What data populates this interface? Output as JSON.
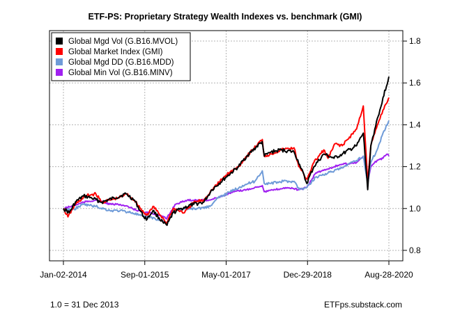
{
  "chart_data": {
    "type": "line",
    "title": "ETF-PS: Proprietary Strategy Wealth Indexes vs. benchmark (GMI)",
    "x_axis": {
      "ticks": [
        "Jan-02-2014",
        "Sep-01-2015",
        "May-01-2017",
        "Dec-29-2018",
        "Aug-28-2020"
      ],
      "range": [
        "2014-01-02",
        "2020-08-28"
      ]
    },
    "y_axis": {
      "ticks": [
        "0.8",
        "1.0",
        "1.2",
        "1.4",
        "1.6",
        "1.8"
      ],
      "range": [
        0.75,
        1.85
      ],
      "position": "right"
    },
    "grid": true,
    "legend_position": "top-left",
    "series": [
      {
        "name": "Global Mgd Vol (G.B16.MVOL)",
        "color": "#000000",
        "points": [
          [
            "2014-01-02",
            1.0
          ],
          [
            "2014-02-15",
            0.98
          ],
          [
            "2014-04-01",
            1.03
          ],
          [
            "2014-06-01",
            1.06
          ],
          [
            "2014-08-01",
            1.05
          ],
          [
            "2014-10-15",
            1.03
          ],
          [
            "2015-01-15",
            1.05
          ],
          [
            "2015-04-15",
            1.07
          ],
          [
            "2015-06-15",
            1.04
          ],
          [
            "2015-08-25",
            0.96
          ],
          [
            "2015-09-20",
            0.95
          ],
          [
            "2015-11-01",
            0.99
          ],
          [
            "2016-01-20",
            0.93
          ],
          [
            "2016-02-15",
            0.92
          ],
          [
            "2016-04-01",
            0.98
          ],
          [
            "2016-06-01",
            1.0
          ],
          [
            "2016-09-01",
            1.02
          ],
          [
            "2016-11-15",
            1.03
          ],
          [
            "2017-01-15",
            1.09
          ],
          [
            "2017-05-01",
            1.15
          ],
          [
            "2017-08-01",
            1.2
          ],
          [
            "2017-10-01",
            1.25
          ],
          [
            "2018-01-25",
            1.32
          ],
          [
            "2018-02-10",
            1.25
          ],
          [
            "2018-04-01",
            1.27
          ],
          [
            "2018-06-15",
            1.28
          ],
          [
            "2018-09-20",
            1.27
          ],
          [
            "2018-11-01",
            1.21
          ],
          [
            "2018-12-24",
            1.12
          ],
          [
            "2019-02-15",
            1.2
          ],
          [
            "2019-05-01",
            1.26
          ],
          [
            "2019-07-15",
            1.24
          ],
          [
            "2019-09-15",
            1.26
          ],
          [
            "2019-12-31",
            1.3
          ],
          [
            "2020-02-19",
            1.36
          ],
          [
            "2020-03-23",
            1.09
          ],
          [
            "2020-04-15",
            1.3
          ],
          [
            "2020-05-15",
            1.38
          ],
          [
            "2020-06-15",
            1.45
          ],
          [
            "2020-07-15",
            1.53
          ],
          [
            "2020-08-28",
            1.63
          ]
        ]
      },
      {
        "name": "Global Market Index (GMI)",
        "color": "#ff0000",
        "points": [
          [
            "2014-01-02",
            1.0
          ],
          [
            "2014-02-05",
            0.96
          ],
          [
            "2014-04-01",
            1.02
          ],
          [
            "2014-06-15",
            1.06
          ],
          [
            "2014-09-01",
            1.07
          ],
          [
            "2014-10-15",
            1.03
          ],
          [
            "2014-12-15",
            1.04
          ],
          [
            "2015-02-15",
            1.05
          ],
          [
            "2015-04-20",
            1.07
          ],
          [
            "2015-06-15",
            1.04
          ],
          [
            "2015-08-25",
            0.98
          ],
          [
            "2015-09-25",
            0.97
          ],
          [
            "2015-11-01",
            1.01
          ],
          [
            "2016-01-20",
            0.95
          ],
          [
            "2016-02-11",
            0.93
          ],
          [
            "2016-04-01",
            1.0
          ],
          [
            "2016-06-24",
            0.98
          ],
          [
            "2016-09-01",
            1.03
          ],
          [
            "2016-11-15",
            1.04
          ],
          [
            "2017-01-15",
            1.09
          ],
          [
            "2017-05-01",
            1.16
          ],
          [
            "2017-08-01",
            1.2
          ],
          [
            "2017-10-01",
            1.25
          ],
          [
            "2018-01-26",
            1.33
          ],
          [
            "2018-02-09",
            1.25
          ],
          [
            "2018-04-01",
            1.26
          ],
          [
            "2018-06-15",
            1.28
          ],
          [
            "2018-09-20",
            1.29
          ],
          [
            "2018-10-25",
            1.2
          ],
          [
            "2018-12-24",
            1.14
          ],
          [
            "2019-02-15",
            1.22
          ],
          [
            "2019-04-30",
            1.28
          ],
          [
            "2019-06-01",
            1.24
          ],
          [
            "2019-07-25",
            1.31
          ],
          [
            "2019-09-15",
            1.3
          ],
          [
            "2019-12-31",
            1.38
          ],
          [
            "2020-02-19",
            1.49
          ],
          [
            "2020-03-23",
            1.12
          ],
          [
            "2020-04-15",
            1.3
          ],
          [
            "2020-05-15",
            1.36
          ],
          [
            "2020-06-15",
            1.42
          ],
          [
            "2020-07-15",
            1.47
          ],
          [
            "2020-08-28",
            1.53
          ]
        ]
      },
      {
        "name": "Global Mgd DD (G.B16.MDD)",
        "color": "#6f9bd8",
        "points": [
          [
            "2014-01-02",
            1.0
          ],
          [
            "2014-03-01",
            0.99
          ],
          [
            "2014-06-01",
            1.02
          ],
          [
            "2014-09-01",
            1.01
          ],
          [
            "2014-12-15",
            0.99
          ],
          [
            "2015-03-01",
            0.99
          ],
          [
            "2015-06-01",
            0.98
          ],
          [
            "2015-08-25",
            0.96
          ],
          [
            "2015-10-01",
            0.96
          ],
          [
            "2016-01-20",
            0.94
          ],
          [
            "2016-02-11",
            0.93
          ],
          [
            "2016-04-01",
            0.99
          ],
          [
            "2016-07-01",
            1.0
          ],
          [
            "2016-10-01",
            1.0
          ],
          [
            "2016-12-31",
            1.01
          ],
          [
            "2017-03-01",
            1.05
          ],
          [
            "2017-06-01",
            1.08
          ],
          [
            "2017-09-01",
            1.11
          ],
          [
            "2017-12-01",
            1.13
          ],
          [
            "2018-01-26",
            1.18
          ],
          [
            "2018-02-09",
            1.12
          ],
          [
            "2018-04-01",
            1.12
          ],
          [
            "2018-07-01",
            1.13
          ],
          [
            "2018-09-20",
            1.13
          ],
          [
            "2018-11-01",
            1.09
          ],
          [
            "2018-12-24",
            1.1
          ],
          [
            "2019-03-01",
            1.15
          ],
          [
            "2019-06-01",
            1.17
          ],
          [
            "2019-09-01",
            1.19
          ],
          [
            "2019-12-31",
            1.23
          ],
          [
            "2020-02-19",
            1.25
          ],
          [
            "2020-03-23",
            1.12
          ],
          [
            "2020-04-15",
            1.22
          ],
          [
            "2020-06-01",
            1.28
          ],
          [
            "2020-07-15",
            1.36
          ],
          [
            "2020-08-28",
            1.42
          ]
        ]
      },
      {
        "name": "Global Min Vol (G.B16.MINV)",
        "color": "#a020f0",
        "points": [
          [
            "2014-01-02",
            1.0
          ],
          [
            "2014-03-01",
            1.01
          ],
          [
            "2014-06-01",
            1.03
          ],
          [
            "2014-09-01",
            1.04
          ],
          [
            "2014-12-15",
            1.02
          ],
          [
            "2015-03-01",
            1.02
          ],
          [
            "2015-06-01",
            1.0
          ],
          [
            "2015-08-25",
            0.98
          ],
          [
            "2015-10-15",
            0.98
          ],
          [
            "2016-01-20",
            0.96
          ],
          [
            "2016-02-11",
            0.95
          ],
          [
            "2016-04-15",
            1.02
          ],
          [
            "2016-07-15",
            1.04
          ],
          [
            "2016-10-15",
            1.04
          ],
          [
            "2016-12-31",
            1.04
          ],
          [
            "2017-04-01",
            1.06
          ],
          [
            "2017-07-01",
            1.08
          ],
          [
            "2017-10-01",
            1.09
          ],
          [
            "2018-01-26",
            1.11
          ],
          [
            "2018-02-09",
            1.08
          ],
          [
            "2018-05-01",
            1.09
          ],
          [
            "2018-08-01",
            1.1
          ],
          [
            "2018-10-25",
            1.09
          ],
          [
            "2018-12-24",
            1.1
          ],
          [
            "2019-03-01",
            1.17
          ],
          [
            "2019-06-01",
            1.19
          ],
          [
            "2019-09-01",
            1.21
          ],
          [
            "2019-12-31",
            1.22
          ],
          [
            "2020-02-19",
            1.25
          ],
          [
            "2020-03-23",
            1.12
          ],
          [
            "2020-04-15",
            1.2
          ],
          [
            "2020-06-01",
            1.23
          ],
          [
            "2020-07-15",
            1.24
          ],
          [
            "2020-08-15",
            1.26
          ],
          [
            "2020-08-28",
            1.25
          ]
        ]
      }
    ]
  },
  "footer": {
    "left": "1.0 = 31 Dec 2013",
    "right": "ETFps.substack.com"
  }
}
